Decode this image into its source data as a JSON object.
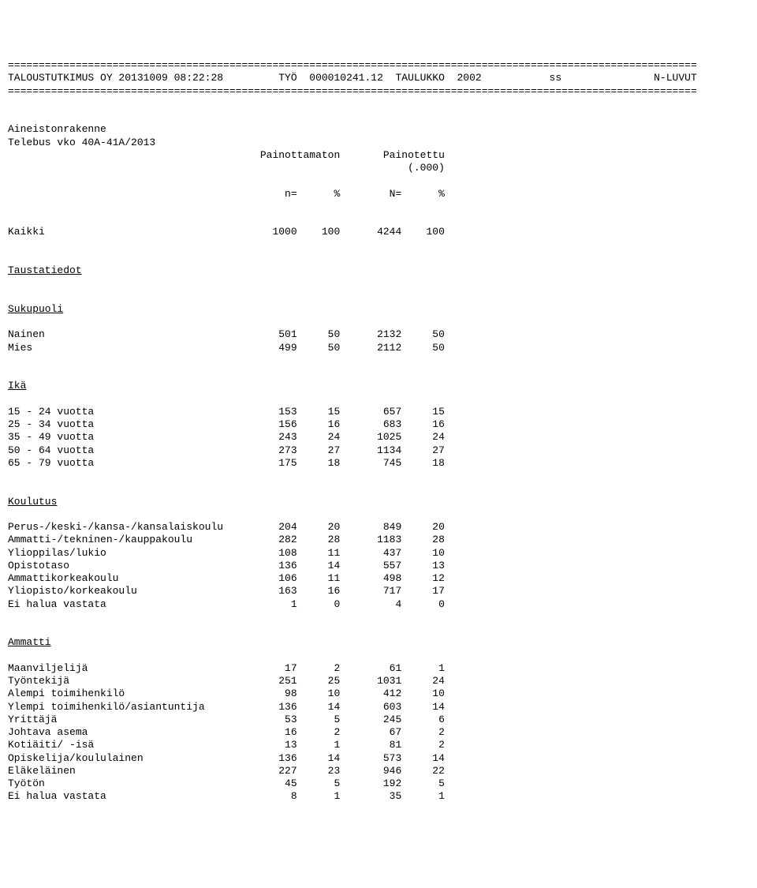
{
  "header": {
    "divider": "================================================================================================================",
    "left": "TALOUSTUTKIMUS OY 20131009 08:22:28",
    "center": "TYÖ  000010241.12  TAULUKKO  2002",
    "right_ss": "ss",
    "right_label": "N-LUVUT"
  },
  "source": {
    "line1": "Aineistonrakenne",
    "line2": "Telebus vko 40A-41A/2013"
  },
  "col_headers": {
    "h1": "Painottamaton",
    "h2": "Painotettu",
    "h2_sub": "(.000)",
    "n1": "n=",
    "p1": "%",
    "n2": "N=",
    "p2": "%"
  },
  "sections": [
    {
      "title": "Kaikki",
      "is_underline": false,
      "rows": [
        {
          "label": "Kaikki",
          "n": "1000",
          "pn": "100",
          "N": "4244",
          "pN": "100"
        }
      ],
      "hide_title": true
    },
    {
      "title": "Taustatiedot",
      "is_underline": true,
      "rows": []
    },
    {
      "title": "Sukupuoli",
      "is_underline": true,
      "rows": [
        {
          "label": "Nainen",
          "n": "501",
          "pn": "50",
          "N": "2132",
          "pN": "50"
        },
        {
          "label": "Mies",
          "n": "499",
          "pn": "50",
          "N": "2112",
          "pN": "50"
        }
      ]
    },
    {
      "title": "Ikä",
      "is_underline": true,
      "rows": [
        {
          "label": "15 - 24 vuotta",
          "n": "153",
          "pn": "15",
          "N": "657",
          "pN": "15"
        },
        {
          "label": "25 - 34 vuotta",
          "n": "156",
          "pn": "16",
          "N": "683",
          "pN": "16"
        },
        {
          "label": "35 - 49 vuotta",
          "n": "243",
          "pn": "24",
          "N": "1025",
          "pN": "24"
        },
        {
          "label": "50 - 64 vuotta",
          "n": "273",
          "pn": "27",
          "N": "1134",
          "pN": "27"
        },
        {
          "label": "65 - 79 vuotta",
          "n": "175",
          "pn": "18",
          "N": "745",
          "pN": "18"
        }
      ]
    },
    {
      "title": "Koulutus",
      "is_underline": true,
      "rows": [
        {
          "label": "Perus-/keski-/kansa-/kansalaiskoulu",
          "n": "204",
          "pn": "20",
          "N": "849",
          "pN": "20"
        },
        {
          "label": "Ammatti-/tekninen-/kauppakoulu",
          "n": "282",
          "pn": "28",
          "N": "1183",
          "pN": "28"
        },
        {
          "label": "Ylioppilas/lukio",
          "n": "108",
          "pn": "11",
          "N": "437",
          "pN": "10"
        },
        {
          "label": "Opistotaso",
          "n": "136",
          "pn": "14",
          "N": "557",
          "pN": "13"
        },
        {
          "label": "Ammattikorkeakoulu",
          "n": "106",
          "pn": "11",
          "N": "498",
          "pN": "12"
        },
        {
          "label": "Yliopisto/korkeakoulu",
          "n": "163",
          "pn": "16",
          "N": "717",
          "pN": "17"
        },
        {
          "label": "Ei halua vastata",
          "n": "1",
          "pn": "0",
          "N": "4",
          "pN": "0"
        }
      ]
    },
    {
      "title": "Ammatti",
      "is_underline": true,
      "rows": [
        {
          "label": "Maanviljelijä",
          "n": "17",
          "pn": "2",
          "N": "61",
          "pN": "1"
        },
        {
          "label": "Työntekijä",
          "n": "251",
          "pn": "25",
          "N": "1031",
          "pN": "24"
        },
        {
          "label": "Alempi toimihenkilö",
          "n": "98",
          "pn": "10",
          "N": "412",
          "pN": "10"
        },
        {
          "label": "Ylempi toimihenkilö/asiantuntija",
          "n": "136",
          "pn": "14",
          "N": "603",
          "pN": "14"
        },
        {
          "label": "Yrittäjä",
          "n": "53",
          "pn": "5",
          "N": "245",
          "pN": "6"
        },
        {
          "label": "Johtava asema",
          "n": "16",
          "pn": "2",
          "N": "67",
          "pN": "2"
        },
        {
          "label": "Kotiäiti/ -isä",
          "n": "13",
          "pn": "1",
          "N": "81",
          "pN": "2"
        },
        {
          "label": "Opiskelija/koululainen",
          "n": "136",
          "pn": "14",
          "N": "573",
          "pN": "14"
        },
        {
          "label": "Eläkeläinen",
          "n": "227",
          "pn": "23",
          "N": "946",
          "pN": "22"
        },
        {
          "label": "Työtön",
          "n": "45",
          "pn": "5",
          "N": "192",
          "pN": "5"
        },
        {
          "label": "Ei halua vastata",
          "n": "8",
          "pn": "1",
          "N": "35",
          "pN": "1"
        }
      ]
    }
  ],
  "layout": {
    "label_width": 38,
    "col_n_width": 9,
    "col_p_width": 7,
    "col_N_width": 10,
    "col_P_width": 7,
    "header_total_width": 112
  }
}
